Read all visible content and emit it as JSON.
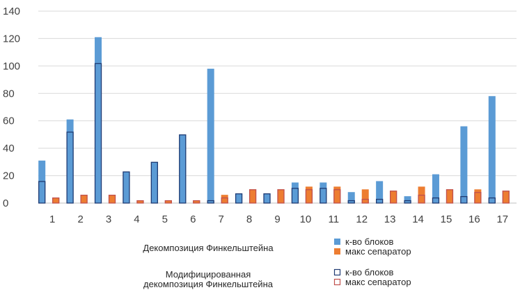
{
  "chart_data": {
    "type": "bar",
    "categories": [
      "1",
      "2",
      "3",
      "4",
      "5",
      "6",
      "7",
      "8",
      "9",
      "10",
      "11",
      "12",
      "13",
      "14",
      "15",
      "16",
      "17"
    ],
    "ylim": [
      0,
      140
    ],
    "yticks": [
      "0",
      "20",
      "40",
      "60",
      "80",
      "100",
      "120",
      "140"
    ],
    "grid": true,
    "series": [
      {
        "name": "к-во блоков",
        "group": "Декомпозиция Финкельштейна",
        "style": "filled",
        "color": "#5B9BD5",
        "values": [
          31,
          61,
          121,
          23,
          30,
          50,
          98,
          7,
          7,
          15,
          15,
          8,
          16,
          5,
          21,
          56,
          78
        ]
      },
      {
        "name": "макс сепаратор",
        "group": "Декомпозиция Финкельштейна",
        "style": "filled",
        "color": "#ED7D31",
        "values": [
          4,
          6,
          6,
          2,
          2,
          2,
          6,
          10,
          10,
          12,
          12,
          10,
          9,
          12,
          10,
          10,
          9
        ]
      },
      {
        "name": "к-во блоков",
        "group": "Модифицированная декомпозиция Финкельштейна",
        "style": "outline",
        "color": "#1F3B73",
        "values": [
          16,
          52,
          102,
          23,
          30,
          50,
          2,
          7,
          7,
          11,
          11,
          2,
          3,
          2,
          4,
          5,
          4
        ]
      },
      {
        "name": "макс сепаратор",
        "group": "Модифицированная декомпозиция Финкельштейна",
        "style": "outline",
        "color": "#C0504D",
        "values": [
          4,
          6,
          6,
          2,
          2,
          2,
          4,
          10,
          10,
          10,
          10,
          3,
          9,
          6,
          10,
          8,
          9
        ]
      }
    ],
    "legend": {
      "placement": "bottom",
      "groups": [
        {
          "label_lines": [
            "Декомпозиция Финкельштейна"
          ],
          "entries": [
            "к-во блоков",
            "макс сепаратор"
          ]
        },
        {
          "label_lines": [
            "Модифицированная",
            "декомпозиция Финкельштейна"
          ],
          "entries": [
            "к-во блоков",
            "макс сепаратор"
          ]
        }
      ]
    },
    "colors": {
      "grid": "#D9D9D9",
      "axis": "#BFBFBF",
      "text": "#404040"
    }
  }
}
